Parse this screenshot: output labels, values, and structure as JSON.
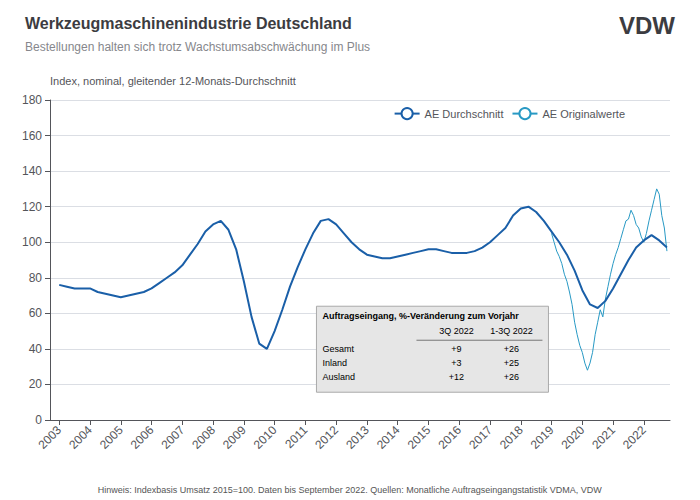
{
  "chart_data": {
    "type": "line",
    "title": "Werkzeugmaschinenindustrie Deutschland",
    "subtitle": "Bestellungen halten sich trotz Wachstumsabschwächung im Plus",
    "logo": "VDW",
    "ylabel": "Index, nominal, gleitender 12-Monats-Durchschnitt",
    "footnote": "Hinweis: Indexbasis Umsatz 2015=100. Daten bis September 2022. Quellen: Monatliche Auftragseingangstatistik VDMA, VDW",
    "xlim": [
      2002.7,
      2022.85
    ],
    "xticks": [
      2003,
      2004,
      2005,
      2006,
      2007,
      2008,
      2009,
      2010,
      2011,
      2012,
      2013,
      2014,
      2015,
      2016,
      2017,
      2018,
      2019,
      2020,
      2021,
      2022
    ],
    "ylim": [
      0,
      180
    ],
    "yticks": [
      0,
      20,
      40,
      60,
      80,
      100,
      120,
      140,
      160,
      180
    ],
    "grid": "y",
    "legend": "upper right",
    "series": [
      {
        "name": "AE Durchschnitt",
        "color": "#1a5fa8",
        "x": [
          2003.0,
          2003.25,
          2003.5,
          2003.75,
          2004.0,
          2004.25,
          2004.5,
          2004.75,
          2005.0,
          2005.25,
          2005.5,
          2005.75,
          2006.0,
          2006.25,
          2006.5,
          2006.75,
          2007.0,
          2007.25,
          2007.5,
          2007.75,
          2008.0,
          2008.25,
          2008.5,
          2008.75,
          2009.0,
          2009.25,
          2009.5,
          2009.75,
          2010.0,
          2010.25,
          2010.5,
          2010.75,
          2011.0,
          2011.25,
          2011.5,
          2011.75,
          2012.0,
          2012.25,
          2012.5,
          2012.75,
          2013.0,
          2013.25,
          2013.5,
          2013.75,
          2014.0,
          2014.25,
          2014.5,
          2014.75,
          2015.0,
          2015.25,
          2015.5,
          2015.75,
          2016.0,
          2016.25,
          2016.5,
          2016.75,
          2017.0,
          2017.25,
          2017.5,
          2017.75,
          2018.0,
          2018.25,
          2018.5,
          2018.75,
          2019.0,
          2019.25,
          2019.5,
          2019.75,
          2020.0,
          2020.25,
          2020.5,
          2020.75,
          2021.0,
          2021.25,
          2021.5,
          2021.75,
          2022.0,
          2022.25,
          2022.5,
          2022.75
        ],
        "values": [
          76,
          75,
          74,
          74,
          74,
          72,
          71,
          70,
          69,
          70,
          71,
          72,
          74,
          77,
          80,
          83,
          87,
          93,
          99,
          106,
          110,
          112,
          107,
          96,
          78,
          58,
          43,
          40,
          50,
          62,
          75,
          86,
          96,
          105,
          112,
          113,
          110,
          105,
          100,
          96,
          93,
          92,
          91,
          91,
          92,
          93,
          94,
          95,
          96,
          96,
          95,
          94,
          94,
          94,
          95,
          97,
          100,
          104,
          108,
          115,
          119,
          120,
          117,
          112,
          106,
          100,
          93,
          84,
          73,
          65,
          63,
          67,
          74,
          82,
          90,
          97,
          101,
          104,
          101,
          97
        ]
      },
      {
        "name": "AE Originalwerte",
        "color": "#2899c4",
        "x": [
          2019.0,
          2019.083,
          2019.167,
          2019.25,
          2019.333,
          2019.417,
          2019.5,
          2019.583,
          2019.667,
          2019.75,
          2019.833,
          2019.917,
          2020.0,
          2020.083,
          2020.167,
          2020.25,
          2020.333,
          2020.417,
          2020.5,
          2020.583,
          2020.667,
          2020.75,
          2020.833,
          2020.917,
          2021.0,
          2021.083,
          2021.167,
          2021.25,
          2021.333,
          2021.417,
          2021.5,
          2021.583,
          2021.667,
          2021.75,
          2021.833,
          2021.917,
          2022.0,
          2022.083,
          2022.167,
          2022.25,
          2022.333,
          2022.417,
          2022.5,
          2022.583,
          2022.667,
          2022.75
        ],
        "values": [
          105,
          100,
          95,
          92,
          88,
          82,
          78,
          72,
          65,
          55,
          48,
          42,
          38,
          32,
          28,
          32,
          38,
          48,
          55,
          62,
          58,
          68,
          75,
          82,
          88,
          93,
          97,
          102,
          107,
          112,
          113,
          118,
          115,
          110,
          108,
          103,
          100,
          105,
          112,
          118,
          124,
          130,
          127,
          115,
          108,
          95
        ]
      }
    ],
    "table": {
      "title": "Auftragseingang, %-Veränderung zum Vorjahr",
      "columns": [
        "3Q 2022",
        "1-3Q 2022"
      ],
      "rows": [
        [
          "Gesamt",
          "+9",
          "+26"
        ],
        [
          "Inland",
          "+3",
          "+25"
        ],
        [
          "Ausland",
          "+12",
          "+26"
        ]
      ]
    }
  }
}
